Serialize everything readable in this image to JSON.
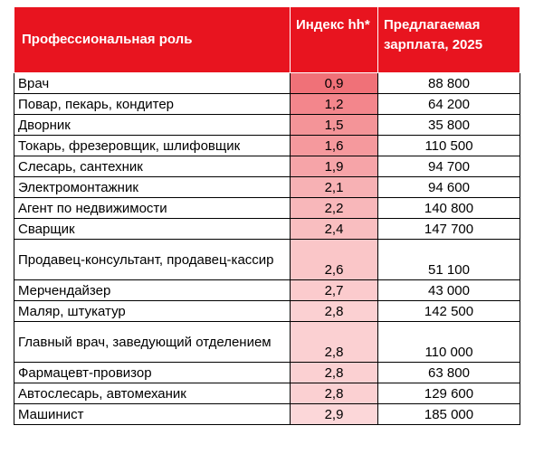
{
  "header": {
    "role": "Профессиональная роль",
    "index": "Индекс hh*",
    "salary": "Предлагаемая зарплата, 2025"
  },
  "rows": [
    {
      "role": "Врач",
      "index": "0,9",
      "salary": "88 800",
      "color": "#f07178"
    },
    {
      "role": "Повар, пекарь, кондитер",
      "index": "1,2",
      "salary": "64 200",
      "color": "#f3868c"
    },
    {
      "role": "Дворник",
      "index": "1,5",
      "salary": "35 800",
      "color": "#f49498"
    },
    {
      "role": "Токарь, фрезеровщик, шлифовщик",
      "index": "1,6",
      "salary": "110 500",
      "color": "#f5999d"
    },
    {
      "role": "Слесарь, сантехник",
      "index": "1,9",
      "salary": "94 700",
      "color": "#f6a4a8"
    },
    {
      "role": "Электромонтажник",
      "index": "2,1",
      "salary": "94 600",
      "color": "#f7b1b4"
    },
    {
      "role": "Агент по недвижимости",
      "index": "2,2",
      "salary": "140 800",
      "color": "#f8b7ba"
    },
    {
      "role": "Сварщик",
      "index": "2,4",
      "salary": "147 700",
      "color": "#f9bec0"
    },
    {
      "role": "Продавец-консультант, продавец-кассир",
      "index": "2,6",
      "salary": "51 100",
      "color": "#fac6c8",
      "tall": true
    },
    {
      "role": "Мерчендайзер",
      "index": "2,7",
      "salary": "43 000",
      "color": "#fbcbcd"
    },
    {
      "role": "Маляр, штукатур",
      "index": "2,8",
      "salary": "142 500",
      "color": "#fbd0d2"
    },
    {
      "role": "Главный врач, заведующий отделением",
      "index": "2,8",
      "salary": "110 000",
      "color": "#fbd0d2",
      "tall": true
    },
    {
      "role": "Фармацевт-провизор",
      "index": "2,8",
      "salary": "63 800",
      "color": "#fbd0d2"
    },
    {
      "role": "Автослесарь, автомеханик",
      "index": "2,8",
      "salary": "129 600",
      "color": "#fbd0d2"
    },
    {
      "role": "Машинист",
      "index": "2,9",
      "salary": "185 000",
      "color": "#fcd7d9"
    }
  ]
}
